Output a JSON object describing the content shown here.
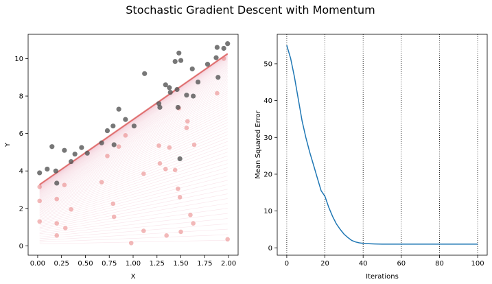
{
  "figure": {
    "title": "Stochastic Gradient Descent with Momentum"
  },
  "colors": {
    "data_points": "#555555",
    "fit_lines": "#e06b6b",
    "fit_lines_faint": "#f3c9d6",
    "prediction_points": "#e57373",
    "mse_curve": "#1f77b4"
  },
  "chart_data": [
    {
      "type": "scatter",
      "title": "",
      "xlabel": "X",
      "ylabel": "Y",
      "xlim": [
        -0.1,
        2.1
      ],
      "ylim": [
        -0.5,
        11.3
      ],
      "xticks": [
        0.0,
        0.25,
        0.5,
        0.75,
        1.0,
        1.25,
        1.5,
        1.75,
        2.0
      ],
      "xtick_labels": [
        "0.00",
        "0.25",
        "0.50",
        "0.75",
        "1.00",
        "1.25",
        "1.50",
        "1.75",
        "2.00"
      ],
      "yticks": [
        0,
        2,
        4,
        6,
        8,
        10
      ],
      "ytick_labels": [
        "0",
        "2",
        "4",
        "6",
        "8",
        "10"
      ],
      "grid": false,
      "legend": "none",
      "series": [
        {
          "kind": "data",
          "x": [
            0.02,
            0.1,
            0.15,
            0.19,
            0.2,
            0.28,
            0.35,
            0.39,
            0.46,
            0.52,
            0.67,
            0.73,
            0.79,
            0.8,
            0.85,
            0.92,
            1.01,
            1.12,
            1.27,
            1.28,
            1.34,
            1.38,
            1.39,
            1.44,
            1.46,
            1.47,
            1.48,
            1.49,
            1.5,
            1.56,
            1.62,
            1.63,
            1.68,
            1.78,
            1.87,
            1.88,
            1.89,
            1.95,
            1.99
          ],
          "y": [
            3.9,
            4.1,
            5.3,
            4.0,
            3.35,
            5.1,
            4.5,
            4.9,
            5.25,
            4.95,
            5.5,
            6.15,
            6.4,
            5.4,
            7.3,
            6.75,
            6.4,
            9.2,
            7.6,
            7.4,
            8.6,
            8.45,
            8.2,
            9.85,
            8.35,
            7.4,
            10.3,
            4.65,
            9.9,
            8.05,
            9.45,
            8.0,
            8.75,
            9.7,
            10.05,
            10.6,
            9.0,
            10.55,
            10.8
          ]
        },
        {
          "kind": "predictions",
          "x": [
            0.02,
            0.02,
            0.02,
            0.2,
            0.2,
            0.2,
            0.28,
            0.29,
            0.35,
            0.67,
            0.73,
            0.79,
            0.8,
            0.85,
            0.92,
            0.98,
            1.11,
            1.11,
            1.27,
            1.28,
            1.34,
            1.35,
            1.38,
            1.44,
            1.47,
            1.48,
            1.49,
            1.5,
            1.56,
            1.57,
            1.6,
            1.63,
            1.64,
            1.88,
            1.95,
            1.99
          ],
          "y": [
            2.4,
            1.3,
            3.15,
            2.5,
            1.2,
            0.55,
            3.25,
            0.95,
            1.95,
            3.4,
            4.8,
            2.25,
            1.55,
            5.3,
            5.9,
            0.15,
            3.85,
            0.8,
            5.35,
            4.4,
            4.1,
            0.55,
            5.25,
            4.05,
            3.05,
            7.35,
            2.6,
            0.75,
            6.3,
            6.65,
            1.65,
            1.2,
            5.4,
            8.15,
            10.0,
            0.35
          ]
        }
      ],
      "fit_line_final": {
        "intercept": 3.2,
        "slope": 3.55
      },
      "fit_line_initial": {
        "intercept": 0.1,
        "slope": 0.1
      },
      "fit_line_path_count": 100
    },
    {
      "type": "line",
      "title": "",
      "xlabel": "Iterations",
      "ylabel": "Mean Squared Error",
      "xlim": [
        -5,
        105
      ],
      "ylim": [
        -2,
        58
      ],
      "xticks": [
        0,
        20,
        40,
        60,
        80,
        100
      ],
      "xtick_labels": [
        "0",
        "20",
        "40",
        "60",
        "80",
        "100"
      ],
      "yticks": [
        0,
        10,
        20,
        30,
        40,
        50
      ],
      "ytick_labels": [
        "0",
        "10",
        "20",
        "30",
        "40",
        "50"
      ],
      "grid": "vertical-dotted",
      "legend": "none",
      "series": [
        {
          "x": [
            0,
            2,
            4,
            6,
            8,
            10,
            12,
            14,
            16,
            18,
            20,
            22,
            24,
            26,
            28,
            30,
            32,
            34,
            36,
            38,
            40,
            42,
            44,
            46,
            50,
            60,
            70,
            80,
            90,
            100
          ],
          "y": [
            55,
            51.5,
            46.5,
            40.5,
            34.5,
            30,
            26,
            22.5,
            19,
            15.5,
            14,
            11,
            8.5,
            6.5,
            5,
            3.7,
            2.8,
            2.0,
            1.6,
            1.35,
            1.2,
            1.15,
            1.1,
            1.05,
            1.0,
            1.0,
            1.0,
            1.0,
            1.0,
            1.0
          ]
        }
      ]
    }
  ]
}
